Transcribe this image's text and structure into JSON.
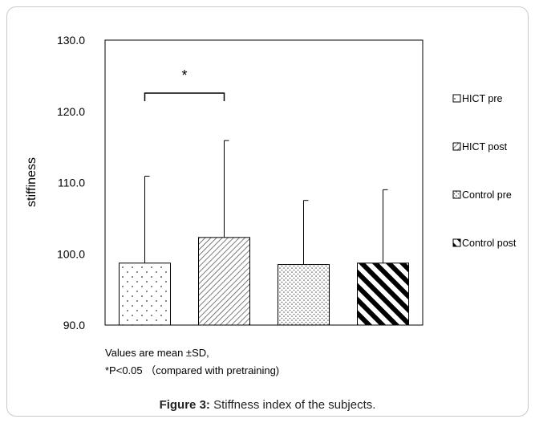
{
  "chart_data": {
    "type": "bar",
    "title": "",
    "xlabel": "",
    "ylabel": "stiffiness",
    "ylim": [
      90,
      130
    ],
    "yticks": [
      "130.0",
      "120.0",
      "110.0",
      "100.0",
      "90.0"
    ],
    "categories": [
      "HICT pre",
      "HICT post",
      "Control pre",
      "Control post"
    ],
    "values": [
      98.7,
      102.3,
      98.5,
      98.7
    ],
    "sd": [
      12.2,
      13.6,
      9.0,
      10.3
    ],
    "patterns": [
      "sparse-dots",
      "fine-diagonal",
      "dense-dots",
      "wide-diagonal"
    ],
    "legend_position": "right",
    "significance": {
      "between": [
        "HICT pre",
        "HICT post"
      ],
      "label": "*"
    },
    "grid": false
  },
  "notes": {
    "line1": "Values are mean ±SD,",
    "line2": "*P<0.05 （compared with pretraining)"
  },
  "caption": {
    "label": "Figure 3:",
    "text": " Stiffness index of the subjects."
  }
}
